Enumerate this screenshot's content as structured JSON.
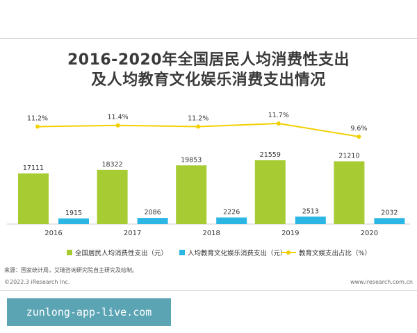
{
  "chart_data": {
    "type": "bar",
    "title": "2016-2020年全国居民人均消费性支出",
    "subtitle": "及人均教育文化娱乐消费支出情况",
    "categories": [
      "2016",
      "2017",
      "2018",
      "2019",
      "2020"
    ],
    "series": [
      {
        "name": "全国居民人均消费性支出（元）",
        "kind": "bar",
        "color": "#a7cc33",
        "values": [
          17111,
          18322,
          19853,
          21559,
          21210
        ]
      },
      {
        "name": "人均教育文化娱乐消费支出（元）",
        "kind": "bar",
        "color": "#2bb6e3",
        "values": [
          1915,
          2086,
          2226,
          2513,
          2032
        ]
      },
      {
        "name": "教育文娱支出占比（%）",
        "kind": "line",
        "color": "#f2d000",
        "values": [
          11.2,
          11.4,
          11.2,
          11.7,
          9.6
        ],
        "labels": [
          "11.2%",
          "11.4%",
          "11.2%",
          "11.7%",
          "9.6%"
        ]
      }
    ],
    "ylim": [
      0,
      22000
    ],
    "line_ylim": [
      0,
      12
    ],
    "legend_position": "bottom",
    "grid": false
  },
  "footer": {
    "source": "来源：国家统计局，艾瑞咨询研究院自主研究及绘制。",
    "copyright": "©2022.3 iResearch Inc.",
    "website": "www.iresearch.com.cn"
  },
  "banner": {
    "text": "zunlong-app-live.com"
  }
}
